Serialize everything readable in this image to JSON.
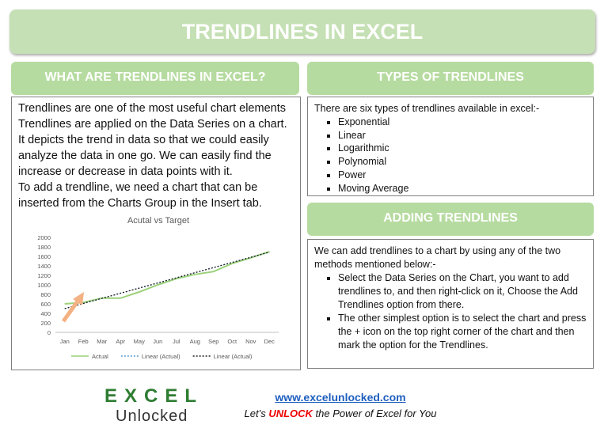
{
  "header": {
    "title": "TRENDLINES IN EXCEL"
  },
  "left": {
    "heading": "WHAT ARE TRENDLINES IN EXCEL?",
    "paragraphs": [
      "Trendlines are one of the most useful chart elements",
      "Trendlines are applied on the Data Series on a chart. It depicts the trend in data so that we could easily analyze the data in one go. We can easily find the increase or decrease in data points with it.",
      "To add a trendline, we need a chart that can be inserted from the Charts Group in the Insert tab."
    ]
  },
  "types": {
    "heading": "TYPES OF TRENDLINES",
    "intro": "There are six types of trendlines available in excel:-",
    "items": [
      "Exponential",
      "Linear",
      "Logarithmic",
      "Polynomial",
      "Power",
      "Moving Average"
    ]
  },
  "adding": {
    "heading": "ADDING TRENDLINES",
    "intro": "We can add trendlines to a chart by using any of the two methods mentioned below:-",
    "items": [
      "Select the Data Series on the Chart, you want to add trendlines to, and then right-click on it, Choose the Add Trendlines option from there.",
      "The other simplest option is to select the chart and press the + icon on the top right corner of the chart and then mark the option for the Trendlines."
    ]
  },
  "chart_data": {
    "type": "line",
    "title": "Acutal vs Target",
    "categories": [
      "Jan",
      "Feb",
      "Mar",
      "Apr",
      "May",
      "Jun",
      "Jul",
      "Aug",
      "Sep",
      "Oct",
      "Nov",
      "Dec"
    ],
    "series": [
      {
        "name": "Actual",
        "color": "#9bd17a",
        "line_style": "solid",
        "values": [
          600,
          630,
          720,
          720,
          850,
          1000,
          1130,
          1220,
          1280,
          1450,
          1570,
          1700
        ]
      },
      {
        "name": "Linear (Actual)",
        "color": "#5b9bd5",
        "line_style": "dotted",
        "values": [
          500,
          608,
          716,
          824,
          932,
          1040,
          1148,
          1256,
          1364,
          1472,
          1580,
          1690
        ]
      },
      {
        "name": "Linear (Actual)",
        "color": "#222222",
        "line_style": "dotted",
        "values": [
          500,
          608,
          716,
          824,
          932,
          1040,
          1148,
          1256,
          1364,
          1472,
          1580,
          1690
        ]
      }
    ],
    "ylim": [
      0,
      2000
    ],
    "yticks": [
      0,
      200,
      400,
      600,
      800,
      1000,
      1200,
      1400,
      1600,
      1800,
      2000
    ],
    "grid": false
  },
  "footer": {
    "logo": {
      "line1": "EXCEL",
      "line2": "Unlocked"
    },
    "url": "www.excelunlocked.com",
    "tagline": [
      "Let’s ",
      "UNLOCK",
      " the Power of Excel for You"
    ]
  }
}
